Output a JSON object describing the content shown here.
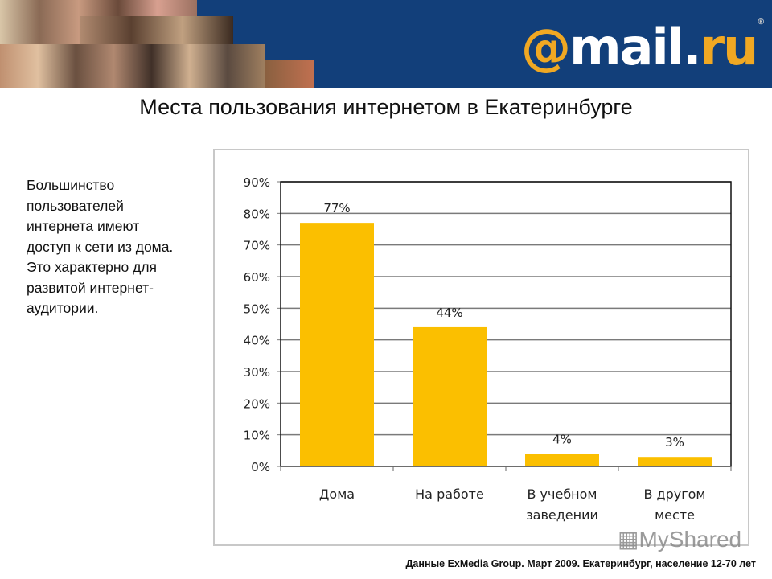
{
  "header": {
    "logo_text": "@mail.ru",
    "brand_color": "#123f7a",
    "accent_color": "#f0a823"
  },
  "title": "Места пользования интернетом в Екатеринбурге",
  "side_text": "Большинство пользователей интернета имеют доступ к сети из дома. Это характерно для развитой интернет-аудитории.",
  "footer": "Данные ExMedia Group. Март 2009. Екатеринбург, население 12-70 лет",
  "watermark": "MyShared",
  "chart_data": {
    "type": "bar",
    "categories": [
      [
        "Дома"
      ],
      [
        "На работе"
      ],
      [
        "В учебном",
        "заведении"
      ],
      [
        "В другом",
        "месте"
      ]
    ],
    "values": [
      77,
      44,
      4,
      3
    ],
    "data_labels": [
      "77%",
      "44%",
      "4%",
      "3%"
    ],
    "yticks": [
      "0%",
      "10%",
      "20%",
      "30%",
      "40%",
      "50%",
      "60%",
      "70%",
      "80%",
      "90%"
    ],
    "ylim": [
      0,
      90
    ],
    "grid": true,
    "bar_color": "#fbbf00"
  }
}
